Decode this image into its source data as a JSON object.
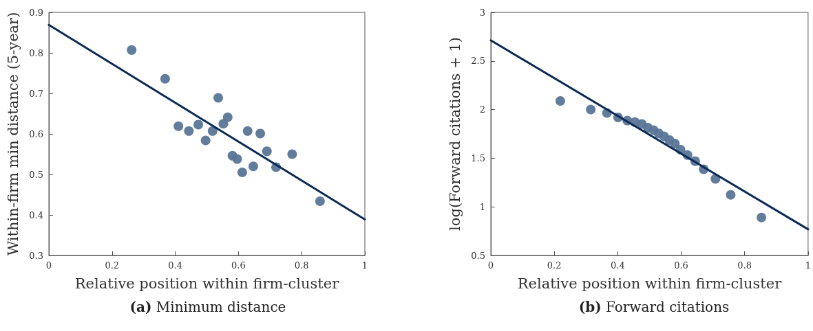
{
  "chart_data": [
    {
      "type": "scatter",
      "title": "(a) Minimum distance",
      "xlabel": "Relative position within firm-cluster",
      "ylabel": "Within-firm min distance (5-year)",
      "xlim": [
        0,
        1
      ],
      "xticks": [
        0,
        0.2,
        0.4,
        0.6,
        0.8,
        1
      ],
      "ylim": [
        0.3,
        0.9
      ],
      "yticks": [
        0.3,
        0.4,
        0.5,
        0.6,
        0.7,
        0.8,
        0.9
      ],
      "grid": false,
      "marker": "circle",
      "series": [
        {
          "color": "#5a7596",
          "x": [
            0.262,
            0.368,
            0.536,
            0.566,
            0.552,
            0.41,
            0.443,
            0.473,
            0.518,
            0.496,
            0.629,
            0.669,
            0.69,
            0.77,
            0.581,
            0.596,
            0.612,
            0.647,
            0.719,
            0.858
          ],
          "values": [
            0.807,
            0.736,
            0.689,
            0.641,
            0.625,
            0.619,
            0.607,
            0.623,
            0.607,
            0.584,
            0.607,
            0.601,
            0.557,
            0.55,
            0.546,
            0.538,
            0.505,
            0.52,
            0.518,
            0.434
          ]
        },
        {
          "type": "line",
          "color": "#0b2a55",
          "x": [
            0,
            1
          ],
          "values": [
            0.869,
            0.389
          ],
          "marker": "none",
          "line_style": "solid"
        }
      ]
    },
    {
      "type": "scatter",
      "title": "(b) Forward citations",
      "xlabel": "Relative position within firm-cluster",
      "ylabel": "log(Forward citations + 1)",
      "xlim": [
        0,
        1
      ],
      "xticks": [
        0,
        0.2,
        0.4,
        0.6,
        0.8,
        1
      ],
      "ylim": [
        0.5,
        3
      ],
      "yticks": [
        0.5,
        1,
        1.5,
        2,
        2.5,
        3
      ],
      "grid": false,
      "marker": "circle",
      "series": [
        {
          "color": "#5a7596",
          "x": [
            0.219,
            0.315,
            0.366,
            0.401,
            0.43,
            0.454,
            0.476,
            0.495,
            0.513,
            0.529,
            0.546,
            0.563,
            0.58,
            0.598,
            0.62,
            0.644,
            0.671,
            0.708,
            0.756,
            0.853
          ],
          "values": [
            2.089,
            2.001,
            1.965,
            1.92,
            1.887,
            1.871,
            1.852,
            1.814,
            1.789,
            1.756,
            1.725,
            1.687,
            1.651,
            1.587,
            1.532,
            1.47,
            1.387,
            1.287,
            1.123,
            0.89
          ]
        },
        {
          "type": "line",
          "color": "#0b2a55",
          "x": [
            0,
            1
          ],
          "values": [
            2.712,
            0.769
          ],
          "marker": "none",
          "line_style": "solid"
        }
      ]
    }
  ]
}
